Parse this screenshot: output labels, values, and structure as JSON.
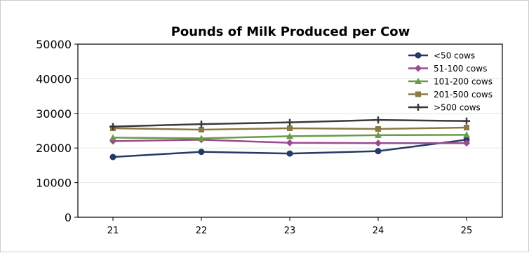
{
  "chart_data": {
    "type": "line",
    "title": "Pounds of Milk Produced per Cow",
    "xlabel": "",
    "ylabel": "",
    "x": [
      21,
      22,
      23,
      24,
      25
    ],
    "x_tick_labels": [
      "21",
      "22",
      "23",
      "24",
      "25"
    ],
    "ylim": [
      0,
      50000
    ],
    "y_ticks": [
      0,
      10000,
      20000,
      30000,
      40000,
      50000
    ],
    "y_tick_labels": [
      "0",
      "10000",
      "20000",
      "30000",
      "40000",
      "50000"
    ],
    "grid": "horizontal",
    "legend_position": "top-right",
    "series": [
      {
        "name": "<50 cows",
        "color": "#253a66",
        "marker": "circle",
        "values": [
          17400,
          18900,
          18400,
          19100,
          22400
        ]
      },
      {
        "name": "51-100 cows",
        "color": "#9b4a8f",
        "marker": "diamond",
        "values": [
          22000,
          22400,
          21500,
          21400,
          21400
        ]
      },
      {
        "name": "101-200 cows",
        "color": "#6a9a4a",
        "marker": "triangle",
        "values": [
          23000,
          22800,
          23400,
          23700,
          23800
        ]
      },
      {
        "name": "201-500 cows",
        "color": "#8a7a45",
        "marker": "square",
        "values": [
          25700,
          25300,
          25700,
          25500,
          25900
        ]
      },
      {
        "name": ">500 cows",
        "color": "#3a3a3a",
        "marker": "plus",
        "values": [
          26200,
          26900,
          27400,
          28100,
          27800
        ]
      }
    ]
  }
}
